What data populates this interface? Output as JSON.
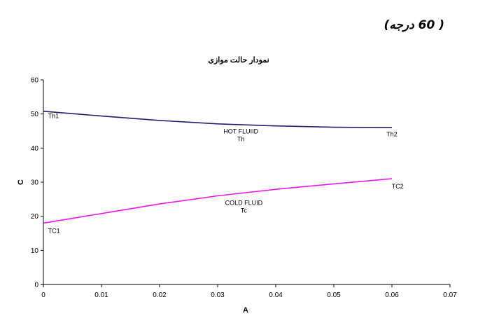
{
  "page_heading": "( 60 درجه)",
  "chart_data": {
    "type": "line",
    "title": "نمودار حالت موازی",
    "xlabel": "A",
    "ylabel": "C",
    "xlim": [
      0,
      0.07
    ],
    "ylim": [
      0,
      60
    ],
    "xticks": [
      0,
      0.01,
      0.02,
      0.03,
      0.04,
      0.05,
      0.06,
      0.07
    ],
    "xtick_labels": [
      "0",
      "0.01",
      "0.02",
      "0.03",
      "0.04",
      "0.05",
      "0.06",
      "0.07"
    ],
    "yticks": [
      0,
      10,
      20,
      30,
      40,
      50,
      60
    ],
    "ytick_labels": [
      "0",
      "10",
      "20",
      "30",
      "40",
      "50",
      "60"
    ],
    "grid": false,
    "legend": "none",
    "series": [
      {
        "id": "hot",
        "color": "#1f1f6b",
        "x": [
          0,
          0.01,
          0.02,
          0.03,
          0.04,
          0.05,
          0.06
        ],
        "y": [
          50.8,
          49.4,
          48.1,
          47.1,
          46.5,
          46.1,
          46.0
        ]
      },
      {
        "id": "cold",
        "color": "#e619e6",
        "x": [
          0,
          0.01,
          0.02,
          0.03,
          0.04,
          0.05,
          0.06
        ],
        "y": [
          18.0,
          20.8,
          23.6,
          26.0,
          27.9,
          29.5,
          31.0
        ]
      }
    ],
    "annotations": [
      {
        "id": "th1",
        "lines": [
          "Th1"
        ],
        "x": 0.0008,
        "y": 48.8,
        "anchor": "start"
      },
      {
        "id": "th2",
        "lines": [
          "Th2"
        ],
        "x": 0.06,
        "y": 43.5,
        "anchor": "middle"
      },
      {
        "id": "hot-fluid",
        "lines": [
          "HOT FLUIID",
          "Th"
        ],
        "x": 0.034,
        "y": 44.3,
        "anchor": "middle"
      },
      {
        "id": "tc1",
        "lines": [
          "TC1"
        ],
        "x": 0.0008,
        "y": 15.1,
        "anchor": "start"
      },
      {
        "id": "tc2",
        "lines": [
          "TC2"
        ],
        "x": 0.061,
        "y": 28.1,
        "anchor": "middle"
      },
      {
        "id": "cold-fluid",
        "lines": [
          "COLD FLUID",
          "Tc"
        ],
        "x": 0.0345,
        "y": 23.3,
        "anchor": "middle"
      }
    ]
  }
}
